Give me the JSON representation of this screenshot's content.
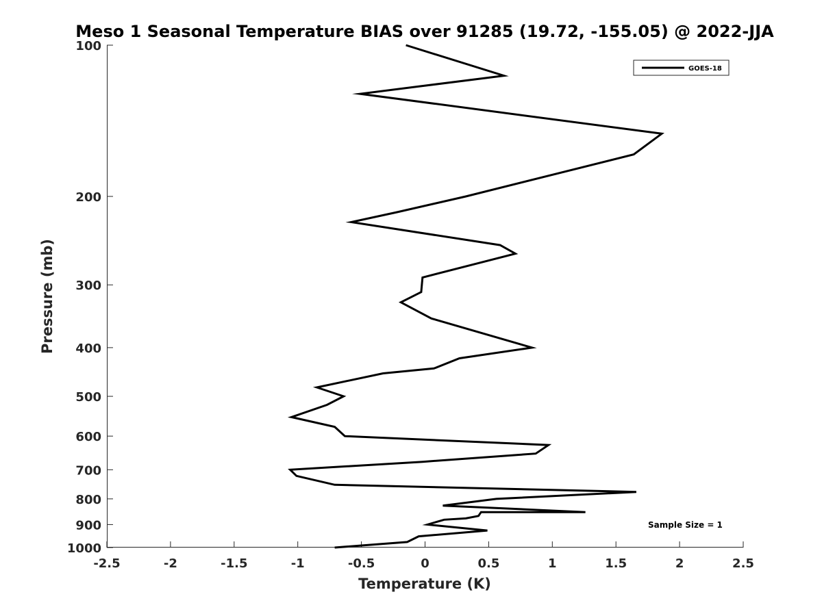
{
  "chart_data": {
    "type": "line",
    "title": "Meso 1 Seasonal Temperature BIAS over 91285 (19.72, -155.05) @ 2022-JJA",
    "xlabel": "Temperature (K)",
    "ylabel": "Pressure (mb)",
    "xlim": [
      -2.5,
      2.5
    ],
    "ylim": [
      100,
      1000
    ],
    "yscale": "log",
    "y_reversed": true,
    "grid": false,
    "x_ticks": [
      -2.5,
      -2,
      -1.5,
      -1,
      -0.5,
      0,
      0.5,
      1,
      1.5,
      2,
      2.5
    ],
    "x_tick_labels": [
      "-2.5",
      "-2",
      "-1.5",
      "-1",
      "-0.5",
      "0",
      "0.5",
      "1",
      "1.5",
      "2",
      "2.5"
    ],
    "y_ticks": [
      100,
      200,
      300,
      400,
      500,
      600,
      700,
      800,
      900,
      1000
    ],
    "y_tick_labels": [
      "100",
      "200",
      "300",
      "400",
      "500",
      "600",
      "700",
      "800",
      "900",
      "1000"
    ],
    "legend_position": "top-right",
    "series": [
      {
        "name": "GOES-18",
        "color": "#000000",
        "x": [
          -0.15,
          0.62,
          -0.51,
          1.86,
          1.64,
          0.32,
          -0.22,
          -0.58,
          0.59,
          0.71,
          -0.02,
          -0.03,
          -0.19,
          0.05,
          0.84,
          0.27,
          0.07,
          -0.33,
          -0.85,
          -0.64,
          -0.77,
          -1.05,
          -0.71,
          -0.63,
          0.97,
          0.87,
          -0.02,
          -1.06,
          -1.01,
          -0.71,
          1.66,
          0.56,
          0.14,
          1.26,
          0.44,
          0.42,
          0.32,
          0.15,
          0.02,
          0.49,
          -0.05,
          -0.14,
          -0.71
        ],
        "y": [
          100,
          115,
          125,
          150,
          165,
          200,
          215,
          225,
          250,
          260,
          290,
          310,
          325,
          350,
          400,
          420,
          440,
          450,
          480,
          500,
          520,
          550,
          575,
          600,
          625,
          650,
          675,
          700,
          720,
          750,
          775,
          800,
          825,
          850,
          850,
          865,
          875,
          880,
          900,
          925,
          950,
          975,
          1000
        ]
      }
    ],
    "annotations": [
      "Sample Size = 1"
    ]
  }
}
